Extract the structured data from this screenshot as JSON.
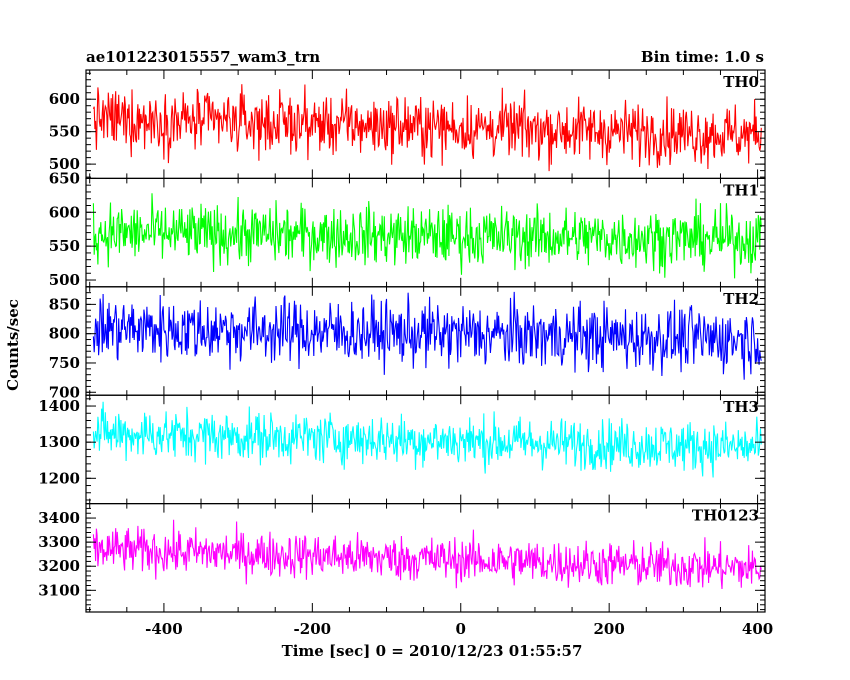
{
  "header": {
    "title": "ae101223015557_wam3_trn",
    "bin_time": "Bin time: 1.0 s"
  },
  "axes": {
    "xlabel": "Time [sec] 0 = 2010/12/23 01:55:57",
    "ylabel": "Counts/sec"
  },
  "chart_data": {
    "type": "line",
    "title": "ae101223015557_wam3_trn",
    "xlabel": "Time [sec] 0 = 2010/12/23 01:55:57",
    "ylabel": "Counts/sec",
    "xlim": [
      -505,
      410
    ],
    "x_ticks": [
      -400,
      -200,
      0,
      200,
      400
    ],
    "x_range": [
      -495,
      405
    ],
    "bin_time_s": 1.0,
    "panels": [
      {
        "name": "TH0",
        "color": "#ff0000",
        "ylim": [
          478,
          645
        ],
        "y_ticks": [
          500,
          550,
          600
        ],
        "mean_start": 570,
        "mean_end": 545,
        "noise": 32
      },
      {
        "name": "TH1",
        "color": "#00ff00",
        "ylim": [
          490,
          650
        ],
        "y_ticks": [
          500,
          550,
          600,
          650
        ],
        "mean_start": 570,
        "mean_end": 560,
        "noise": 30
      },
      {
        "name": "TH2",
        "color": "#0000ff",
        "ylim": [
          695,
          880
        ],
        "y_ticks": [
          700,
          750,
          800,
          850
        ],
        "mean_start": 810,
        "mean_end": 790,
        "noise": 38
      },
      {
        "name": "TH3",
        "color": "#00ffff",
        "ylim": [
          1130,
          1430
        ],
        "y_ticks": [
          1200,
          1300,
          1400
        ],
        "mean_start": 1325,
        "mean_end": 1285,
        "noise": 48
      },
      {
        "name": "TH0123",
        "color": "#ff00ff",
        "ylim": [
          3010,
          3460
        ],
        "y_ticks": [
          3100,
          3200,
          3300,
          3400
        ],
        "mean_start": 3270,
        "mean_end": 3190,
        "noise": 65
      }
    ]
  }
}
